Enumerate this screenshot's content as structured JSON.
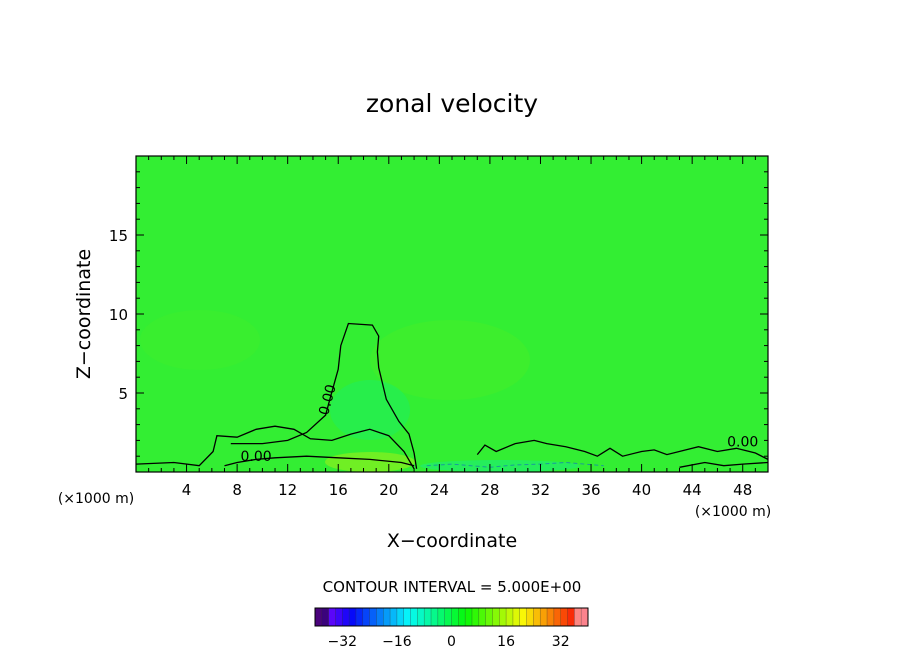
{
  "chart_data": {
    "type": "heatmap",
    "title": "zonal velocity",
    "xlabel": "X−coordinate",
    "ylabel": "Z−coordinate",
    "x_unit_left": "(×1000 m)",
    "x_unit_right": "(×1000 m)",
    "xlim": [
      0,
      50
    ],
    "ylim": [
      0,
      20
    ],
    "xticks": [
      4,
      8,
      12,
      16,
      20,
      24,
      28,
      32,
      36,
      40,
      44,
      48
    ],
    "yticks": [
      5,
      10,
      15
    ],
    "grid": false,
    "contour_interval_text": "CONTOUR INTERVAL = 5.000E+00",
    "contour_labels": [
      {
        "text": "0.00",
        "x": 15.5,
        "y": 4.5,
        "angle": -75
      },
      {
        "text": "0.00",
        "x": 9.5,
        "y": 0.7,
        "angle": 0
      },
      {
        "text": "0.00",
        "x": 48.0,
        "y": 1.6,
        "angle": 0
      }
    ],
    "contour_zero": [
      [
        [
          22.2,
          0.2
        ],
        [
          22.0,
          1.2
        ],
        [
          21.6,
          2.4
        ],
        [
          20.8,
          3.2
        ],
        [
          19.8,
          4.6
        ],
        [
          19.5,
          5.6
        ],
        [
          19.2,
          6.6
        ],
        [
          19.1,
          7.6
        ],
        [
          19.2,
          8.6
        ],
        [
          18.7,
          9.3
        ],
        [
          16.8,
          9.4
        ],
        [
          16.2,
          8.0
        ],
        [
          16.0,
          6.5
        ],
        [
          15.4,
          4.8
        ],
        [
          15.0,
          3.6
        ],
        [
          13.5,
          2.5
        ],
        [
          12.0,
          2.0
        ],
        [
          10.0,
          1.8
        ],
        [
          7.5,
          1.8
        ]
      ],
      [
        [
          22.0,
          0.2
        ],
        [
          21.2,
          1.3
        ],
        [
          20.0,
          2.3
        ],
        [
          18.5,
          2.7
        ],
        [
          17.0,
          2.4
        ],
        [
          15.5,
          2.0
        ],
        [
          13.8,
          2.1
        ],
        [
          12.5,
          2.7
        ],
        [
          11.0,
          2.9
        ],
        [
          9.5,
          2.7
        ],
        [
          8.0,
          2.2
        ],
        [
          6.4,
          2.3
        ],
        [
          6.1,
          1.3
        ],
        [
          5.0,
          0.4
        ],
        [
          3.0,
          0.6
        ],
        [
          0.0,
          0.5
        ]
      ],
      [
        [
          22.0,
          0.4
        ],
        [
          21.0,
          0.6
        ],
        [
          18.5,
          0.8
        ],
        [
          16.0,
          0.9
        ],
        [
          13.5,
          1.0
        ],
        [
          11.0,
          0.9
        ],
        [
          9.5,
          0.8
        ],
        [
          8.0,
          0.6
        ],
        [
          7.0,
          0.4
        ]
      ],
      [
        [
          27.0,
          1.1
        ],
        [
          27.6,
          1.7
        ],
        [
          28.5,
          1.3
        ],
        [
          30.0,
          1.8
        ],
        [
          31.5,
          2.0
        ],
        [
          32.5,
          1.8
        ],
        [
          34.0,
          1.6
        ],
        [
          35.5,
          1.3
        ],
        [
          36.5,
          1.0
        ],
        [
          37.5,
          1.5
        ],
        [
          38.5,
          1.0
        ],
        [
          40.0,
          1.3
        ],
        [
          41.0,
          1.4
        ],
        [
          42.0,
          1.1
        ],
        [
          43.5,
          1.4
        ],
        [
          44.5,
          1.6
        ],
        [
          46.0,
          1.3
        ],
        [
          47.5,
          1.5
        ],
        [
          49.0,
          1.2
        ],
        [
          50.0,
          0.8
        ]
      ],
      [
        [
          43.0,
          0.3
        ],
        [
          45.0,
          0.6
        ],
        [
          46.5,
          0.4
        ],
        [
          48.0,
          0.5
        ],
        [
          50.0,
          0.6
        ]
      ]
    ],
    "contour_negative_dashed": [
      [
        [
          23.0,
          0.4
        ],
        [
          25.0,
          0.5
        ],
        [
          26.5,
          0.4
        ],
        [
          28.0,
          0.3
        ],
        [
          30.0,
          0.45
        ],
        [
          32.0,
          0.5
        ],
        [
          34.0,
          0.6
        ],
        [
          35.5,
          0.5
        ],
        [
          37.0,
          0.4
        ]
      ]
    ],
    "colorbar": {
      "range": [
        -40,
        40
      ],
      "ticks": [
        -32,
        -16,
        0,
        16,
        32
      ],
      "tick_labels": [
        "−32",
        "−16",
        "0",
        "16",
        "32"
      ]
    },
    "colors": {
      "background_field": "#33ee33",
      "positive_zone": "#66ee22",
      "weak_negative_zone": "#22ee55"
    }
  }
}
